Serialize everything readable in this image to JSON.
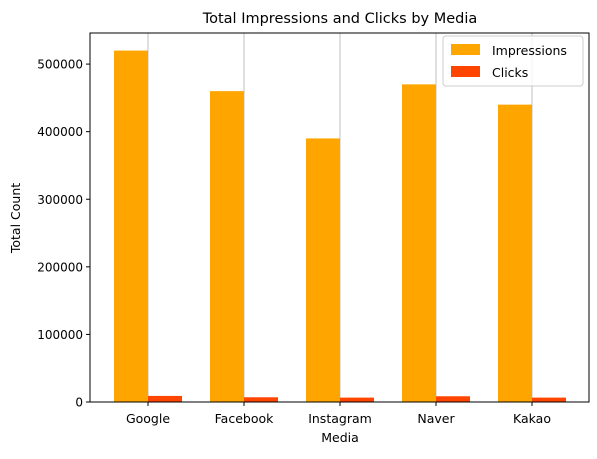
{
  "chart_data": {
    "type": "bar",
    "title": "Total Impressions and Clicks by Media",
    "xlabel": "Media",
    "ylabel": "Total Count",
    "categories": [
      "Google",
      "Facebook",
      "Instagram",
      "Naver",
      "Kakao"
    ],
    "series": [
      {
        "name": "Impressions",
        "color": "#FFA500",
        "values": [
          520000,
          460000,
          390000,
          470000,
          440000
        ]
      },
      {
        "name": "Clicks",
        "color": "#FF4500",
        "values": [
          9000,
          7000,
          6500,
          8500,
          6500
        ]
      }
    ],
    "ylim": [
      0,
      546000
    ],
    "yticks": [
      0,
      100000,
      200000,
      300000,
      400000,
      500000
    ],
    "ytick_labels": [
      "0",
      "100000",
      "200000",
      "300000",
      "400000",
      "500000"
    ],
    "grid": "x-major",
    "legend_position": "upper right"
  }
}
